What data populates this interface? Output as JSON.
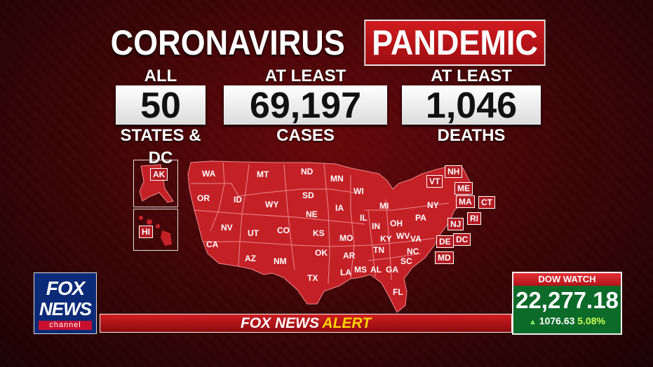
{
  "title": {
    "part1": "CORONAVIRUS",
    "part2": "PANDEMIC"
  },
  "stats": [
    {
      "top": "ALL",
      "value": "50",
      "bottom": "STATES & DC"
    },
    {
      "top": "AT LEAST",
      "value": "69,197",
      "bottom": "CASES"
    },
    {
      "top": "AT LEAST",
      "value": "1,046",
      "bottom": "DEATHS"
    }
  ],
  "map": {
    "fill_color": "#c42127",
    "states": [
      "WA",
      "MT",
      "ND",
      "MN",
      "OR",
      "ID",
      "WY",
      "SD",
      "WI",
      "MI",
      "NV",
      "UT",
      "CO",
      "NE",
      "IA",
      "IL",
      "IN",
      "OH",
      "PA",
      "NY",
      "CA",
      "KS",
      "MO",
      "KY",
      "WV",
      "VA",
      "AZ",
      "NM",
      "OK",
      "AR",
      "TN",
      "NC",
      "TX",
      "LA",
      "MS",
      "AL",
      "GA",
      "SC",
      "FL"
    ],
    "boxed_states": [
      "AK",
      "HI",
      "NH",
      "VT",
      "ME",
      "MA",
      "CT",
      "RI",
      "NJ",
      "DE",
      "DC",
      "MD"
    ]
  },
  "logo": {
    "fox": "FOX",
    "news": "NEWS",
    "channel": "channel"
  },
  "alert": {
    "part1": "FOX NEWS",
    "part2": "ALERT"
  },
  "dow": {
    "header": "DOW WATCH",
    "value": "22,277.18",
    "change": "1076.63",
    "percent": "5.08%"
  },
  "colors": {
    "accent_red": "#c42127",
    "dow_green": "#0d6b2a",
    "alert_yellow": "#ffd400"
  }
}
